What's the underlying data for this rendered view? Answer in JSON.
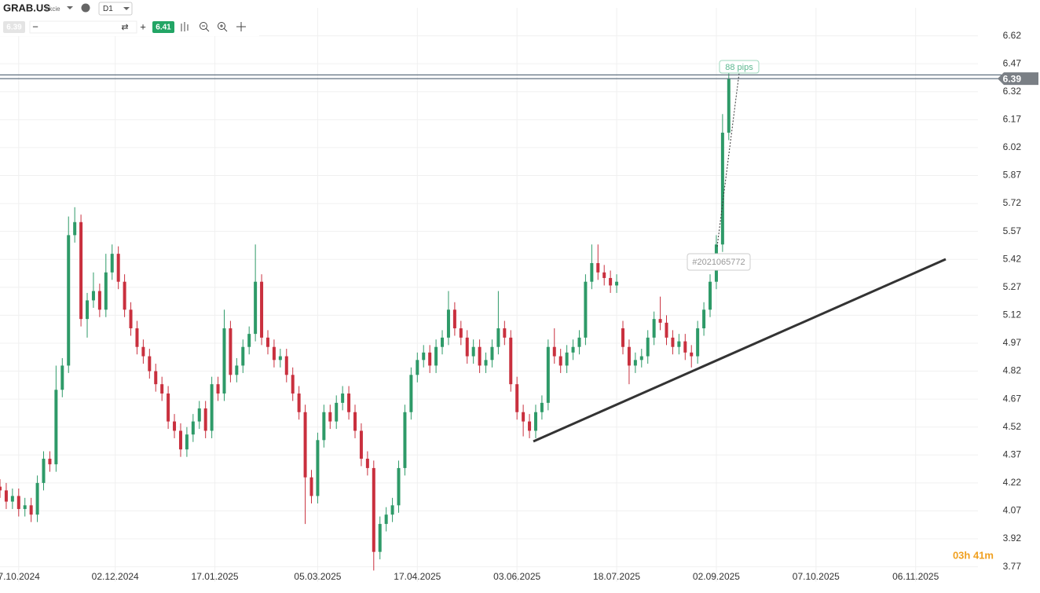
{
  "toolbar": {
    "symbol": "GRAB.US",
    "asset_class": "Akcie",
    "timeframe": "D1"
  },
  "chart_data": {
    "type": "candlestick",
    "x": [
      0,
      2,
      4,
      6,
      8,
      10,
      12,
      14,
      16,
      18,
      20,
      22,
      24,
      26,
      28,
      30,
      32,
      34,
      36,
      38,
      40,
      42,
      44,
      46,
      48,
      50,
      52,
      54,
      56,
      58,
      60,
      62,
      64,
      66,
      68,
      70,
      72,
      74,
      76,
      78,
      80,
      82,
      84,
      86,
      88,
      90,
      92,
      94,
      96,
      98,
      100,
      102,
      104,
      106,
      108,
      110,
      112,
      114,
      116,
      118,
      120,
      122,
      124,
      126,
      128,
      130,
      132,
      134,
      136,
      138,
      140,
      142,
      144,
      146,
      148,
      150,
      152,
      154,
      156,
      158,
      160,
      162,
      164,
      166,
      168,
      170,
      172,
      174,
      176,
      178,
      180,
      182,
      184,
      186,
      188,
      190,
      192,
      194,
      196,
      198,
      200,
      202,
      204,
      206,
      208,
      210,
      212,
      214,
      216,
      218,
      220,
      222,
      224,
      226,
      228,
      230,
      232,
      234
    ],
    "open": [
      4.2,
      4.18,
      4.12,
      4.15,
      4.08,
      4.1,
      4.05,
      4.22,
      4.35,
      4.32,
      4.72,
      4.85,
      5.55,
      5.62,
      5.1,
      5.2,
      5.25,
      5.15,
      5.35,
      5.45,
      5.3,
      5.15,
      5.05,
      4.95,
      4.9,
      4.82,
      4.75,
      4.7,
      4.55,
      4.5,
      4.4,
      4.48,
      4.55,
      4.62,
      4.5,
      4.75,
      4.7,
      5.05,
      4.8,
      4.85,
      4.95,
      5.02,
      5.3,
      5.0,
      4.95,
      4.88,
      4.9,
      4.8,
      4.7,
      4.6,
      4.25,
      4.15,
      4.45,
      4.6,
      4.55,
      4.65,
      4.7,
      4.6,
      4.5,
      4.35,
      4.3,
      3.85,
      4.0,
      4.05,
      4.1,
      4.3,
      4.6,
      4.8,
      4.88,
      4.92,
      4.85,
      4.95,
      5.0,
      5.15,
      5.05,
      5.0,
      4.9,
      4.95,
      4.85,
      4.88,
      4.95,
      5.05,
      5.0,
      4.75,
      4.6,
      4.55,
      4.5,
      4.6,
      4.65,
      4.95,
      4.9,
      4.85,
      4.92,
      4.95,
      5.0,
      5.3,
      5.4,
      5.35,
      5.32,
      5.28,
      5.05,
      4.95,
      4.85,
      4.88,
      4.9,
      5.0,
      5.1,
      5.08,
      5.0,
      4.95,
      4.98,
      4.92,
      4.9,
      5.05,
      5.15,
      5.3,
      5.5,
      6.1
    ],
    "high": [
      4.24,
      4.22,
      4.19,
      4.19,
      4.14,
      4.14,
      4.26,
      4.39,
      4.39,
      4.85,
      4.89,
      5.65,
      5.7,
      5.66,
      5.24,
      5.35,
      5.29,
      5.45,
      5.5,
      5.49,
      5.34,
      5.19,
      5.09,
      4.99,
      4.94,
      4.86,
      4.79,
      4.74,
      4.59,
      4.54,
      4.52,
      4.59,
      4.66,
      4.66,
      4.79,
      4.79,
      5.15,
      5.09,
      4.89,
      4.99,
      5.06,
      5.5,
      5.34,
      5.04,
      4.99,
      4.94,
      4.94,
      4.84,
      4.74,
      4.64,
      4.29,
      4.49,
      4.64,
      4.64,
      4.69,
      4.74,
      4.74,
      4.64,
      4.54,
      4.39,
      4.34,
      4.04,
      4.09,
      4.14,
      4.34,
      4.64,
      4.84,
      4.92,
      4.96,
      4.96,
      4.99,
      5.04,
      5.25,
      5.19,
      5.09,
      5.04,
      4.99,
      4.99,
      4.92,
      4.99,
      5.25,
      5.09,
      5.04,
      4.79,
      4.64,
      4.59,
      4.64,
      4.69,
      4.99,
      5.05,
      4.94,
      4.96,
      4.99,
      5.04,
      5.34,
      5.5,
      5.5,
      5.39,
      5.36,
      5.34,
      5.09,
      4.99,
      4.92,
      4.94,
      5.04,
      5.14,
      5.22,
      5.12,
      5.04,
      5.02,
      5.02,
      4.96,
      5.09,
      5.19,
      5.34,
      5.55,
      6.2,
      6.47
    ],
    "low": [
      4.14,
      4.08,
      4.08,
      4.04,
      4.04,
      4.01,
      4.01,
      4.18,
      4.28,
      4.28,
      4.68,
      4.81,
      5.51,
      5.06,
      5.0,
      5.16,
      5.11,
      5.11,
      5.31,
      5.26,
      5.11,
      5.01,
      4.91,
      4.86,
      4.78,
      4.71,
      4.66,
      4.51,
      4.46,
      4.36,
      4.36,
      4.44,
      4.51,
      4.46,
      4.46,
      4.66,
      4.66,
      4.76,
      4.76,
      4.81,
      4.91,
      4.98,
      4.96,
      4.91,
      4.84,
      4.84,
      4.76,
      4.66,
      4.56,
      4.0,
      4.11,
      4.11,
      4.41,
      4.51,
      4.51,
      4.61,
      4.56,
      4.46,
      4.31,
      4.26,
      3.75,
      3.81,
      3.96,
      4.01,
      4.06,
      4.26,
      4.56,
      4.76,
      4.84,
      4.81,
      4.81,
      4.91,
      4.96,
      5.01,
      4.96,
      4.86,
      4.86,
      4.81,
      4.81,
      4.84,
      4.91,
      4.96,
      4.71,
      4.56,
      4.47,
      4.46,
      4.46,
      4.56,
      4.61,
      4.86,
      4.81,
      4.81,
      4.88,
      4.91,
      4.96,
      5.26,
      5.31,
      5.28,
      5.24,
      5.24,
      4.91,
      4.75,
      4.81,
      4.84,
      4.86,
      4.96,
      5.04,
      4.96,
      4.91,
      4.91,
      4.88,
      4.84,
      4.86,
      5.01,
      5.11,
      5.26,
      5.46,
      6.06
    ],
    "close": [
      4.18,
      4.12,
      4.15,
      4.08,
      4.1,
      4.05,
      4.22,
      4.35,
      4.32,
      4.72,
      4.85,
      5.55,
      5.62,
      5.1,
      5.2,
      5.25,
      5.15,
      5.35,
      5.45,
      5.3,
      5.15,
      5.05,
      4.95,
      4.9,
      4.82,
      4.75,
      4.7,
      4.55,
      4.5,
      4.4,
      4.48,
      4.55,
      4.62,
      4.5,
      4.75,
      4.7,
      5.05,
      4.8,
      4.85,
      4.95,
      5.02,
      5.3,
      5.0,
      4.95,
      4.88,
      4.9,
      4.8,
      4.7,
      4.6,
      4.25,
      4.15,
      4.45,
      4.6,
      4.55,
      4.65,
      4.7,
      4.6,
      4.5,
      4.35,
      4.3,
      3.85,
      4.0,
      4.05,
      4.1,
      4.3,
      4.6,
      4.8,
      4.88,
      4.92,
      4.85,
      4.95,
      5.0,
      5.15,
      5.05,
      5.0,
      4.9,
      4.95,
      4.85,
      4.88,
      4.95,
      5.05,
      5.0,
      4.75,
      4.6,
      4.55,
      4.5,
      4.6,
      4.65,
      4.95,
      4.9,
      4.85,
      4.92,
      4.95,
      5.0,
      5.3,
      5.4,
      5.35,
      5.32,
      5.28,
      5.3,
      4.95,
      4.85,
      4.88,
      4.9,
      5.0,
      5.1,
      5.08,
      5.0,
      4.95,
      4.98,
      4.92,
      4.9,
      5.05,
      5.15,
      5.3,
      5.5,
      6.1,
      6.39
    ],
    "up_color": "#2e9a68",
    "down_color": "#c9303e",
    "bid": 6.39,
    "ask": 6.41,
    "xlim": [
      0,
      314
    ],
    "xticks": [
      {
        "value": 6,
        "label": "7.10.2024"
      },
      {
        "value": 37,
        "label": "02.12.2024"
      },
      {
        "value": 69,
        "label": "17.01.2025"
      },
      {
        "value": 102,
        "label": "05.03.2025"
      },
      {
        "value": 134,
        "label": "17.04.2025"
      },
      {
        "value": 166,
        "label": "03.06.2025"
      },
      {
        "value": 198,
        "label": "18.07.2025"
      },
      {
        "value": 230,
        "label": "02.09.2025"
      },
      {
        "value": 262,
        "label": "07.10.2025"
      },
      {
        "value": 294,
        "label": "06.11.2025"
      }
    ],
    "ylim": [
      3.69,
      6.77
    ],
    "yticks": [
      3.77,
      3.92,
      4.07,
      4.22,
      4.37,
      4.52,
      4.67,
      4.82,
      4.97,
      5.12,
      5.27,
      5.42,
      5.57,
      5.72,
      5.87,
      6.02,
      6.17,
      6.32,
      6.47,
      6.62
    ],
    "grid": true,
    "annotations": [
      "88 pips",
      "#2021065772"
    ],
    "timer": "03h 41m"
  }
}
